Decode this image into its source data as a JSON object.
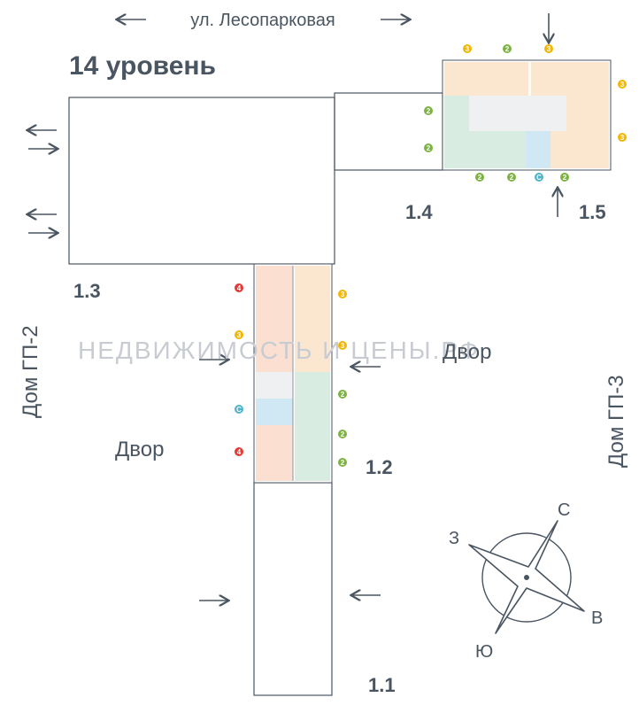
{
  "street": "ул. Лесопарковая",
  "level_title": "14 уровень",
  "sections": [
    "1.1",
    "1.2",
    "1.3",
    "1.4",
    "1.5"
  ],
  "yards": [
    "Двор",
    "Двор"
  ],
  "houses": [
    "Дом ГП-2",
    "Дом ГП-3"
  ],
  "watermark": "НЕДВИЖИМОСТЬ И ЦЕНЫ.РФ",
  "compass": {
    "north": "С",
    "east": "В",
    "south": "Ю",
    "west": "З"
  },
  "badges": [
    {
      "label": "3",
      "color": "#f2b705"
    },
    {
      "label": "2",
      "color": "#7cb342"
    },
    {
      "label": "3",
      "color": "#f2b705"
    },
    {
      "label": "3",
      "color": "#f2b705"
    },
    {
      "label": "3",
      "color": "#f2b705"
    },
    {
      "label": "2",
      "color": "#7cb342"
    },
    {
      "label": "2",
      "color": "#7cb342"
    },
    {
      "label": "2",
      "color": "#7cb342"
    },
    {
      "label": "2",
      "color": "#7cb342"
    },
    {
      "label": "С",
      "color": "#4fb3c9"
    },
    {
      "label": "2",
      "color": "#7cb342"
    },
    {
      "label": "4",
      "color": "#e53935"
    },
    {
      "label": "3",
      "color": "#f2b705"
    },
    {
      "label": "С",
      "color": "#4fb3c9"
    },
    {
      "label": "4",
      "color": "#e53935"
    },
    {
      "label": "3",
      "color": "#f2b705"
    },
    {
      "label": "3",
      "color": "#f2b705"
    },
    {
      "label": "2",
      "color": "#7cb342"
    },
    {
      "label": "2",
      "color": "#7cb342"
    },
    {
      "label": "2",
      "color": "#7cb342"
    }
  ]
}
